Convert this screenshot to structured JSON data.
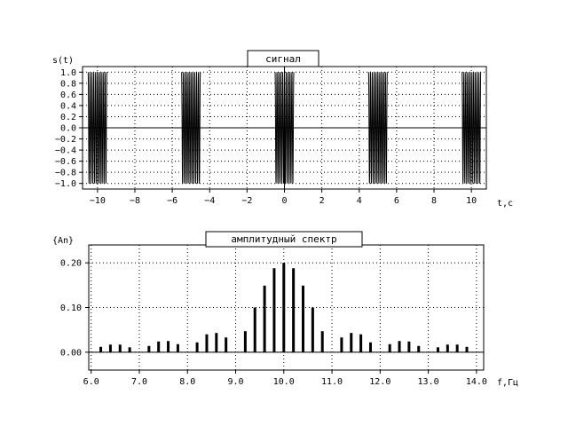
{
  "chart_data": [
    {
      "type": "line",
      "title": "сигнал",
      "ylabel": "s(t)",
      "xlabel": "t,c",
      "xlim": [
        -10.8,
        10.8
      ],
      "ylim": [
        -1.1,
        1.1
      ],
      "grid": true,
      "x_ticks": [
        -10,
        -8,
        -6,
        -4,
        -2,
        0,
        2,
        4,
        6,
        8,
        10
      ],
      "x_tick_labels": [
        "−10",
        "−8",
        "−6",
        "−4",
        "−2",
        "0",
        "2",
        "4",
        "6",
        "8",
        "10"
      ],
      "y_ticks": [
        1.0,
        0.8,
        0.6,
        0.4,
        0.2,
        0.0,
        -0.2,
        -0.4,
        -0.6,
        -0.8,
        -1.0
      ],
      "y_tick_labels": [
        "1.0",
        "0.8",
        "0.6",
        "0.4",
        "0.2",
        "0.0",
        "−0.2",
        "−0.4",
        "−0.6",
        "−0.8",
        "−1.0"
      ],
      "signal": {
        "carrier_frequency_hz": 10,
        "pulse_period_s": 5,
        "pulse_duration_s": 1,
        "pulse_centers_s": [
          -10,
          -5,
          0,
          5,
          10
        ],
        "amplitude": 1.0
      }
    },
    {
      "type": "bar",
      "title": "амплитудный спектр",
      "ylabel": "{An}",
      "xlabel": "f,Гц",
      "xlim": [
        5.95,
        14.15
      ],
      "ylim": [
        -0.04,
        0.24
      ],
      "grid": true,
      "x_ticks": [
        6,
        7,
        8,
        9,
        10,
        11,
        12,
        13,
        14
      ],
      "x_tick_labels": [
        "6.0",
        "7.0",
        "8.0",
        "9.0",
        "10.0",
        "11.0",
        "12.0",
        "13.0",
        "14.0"
      ],
      "y_ticks": [
        0.2,
        0.1,
        0.0
      ],
      "y_tick_labels": [
        "0.20",
        "0.10",
        "0.00"
      ],
      "x": [
        6.0,
        6.2,
        6.4,
        6.6,
        6.8,
        7.0,
        7.2,
        7.4,
        7.6,
        7.8,
        8.0,
        8.2,
        8.4,
        8.6,
        8.8,
        9.0,
        9.2,
        9.4,
        9.6,
        9.8,
        10.0,
        10.2,
        10.4,
        10.6,
        10.8,
        11.0,
        11.2,
        11.4,
        11.6,
        11.8,
        12.0,
        12.2,
        12.4,
        12.6,
        12.8,
        13.0,
        13.2,
        13.4,
        13.6,
        13.8,
        14.0
      ],
      "values": [
        0.0,
        0.012,
        0.017,
        0.017,
        0.011,
        0.0,
        0.014,
        0.024,
        0.025,
        0.018,
        0.0,
        0.022,
        0.04,
        0.043,
        0.033,
        0.0,
        0.047,
        0.1,
        0.149,
        0.188,
        0.2,
        0.188,
        0.149,
        0.1,
        0.047,
        0.0,
        0.033,
        0.043,
        0.04,
        0.022,
        0.0,
        0.018,
        0.025,
        0.024,
        0.014,
        0.0,
        0.011,
        0.017,
        0.017,
        0.012,
        0.0
      ]
    }
  ]
}
